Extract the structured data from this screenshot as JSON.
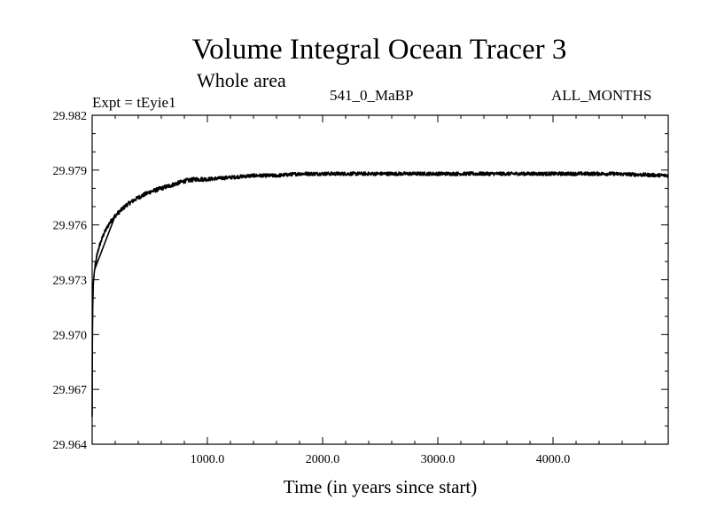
{
  "chart_data": {
    "type": "line",
    "title": "Volume Integral Ocean Tracer 3",
    "subtitle": "Whole area",
    "annotations": {
      "experiment": "Expt = tEyie1",
      "period": "541_0_MaBP",
      "months": "ALL_MONTHS"
    },
    "xlabel": "Time (in years since start)",
    "ylabel": "",
    "xlim": [
      0,
      5000
    ],
    "ylim": [
      29.964,
      29.982
    ],
    "x_ticks": [
      1000,
      2000,
      3000,
      4000
    ],
    "x_tick_labels": [
      "1000.0",
      "2000.0",
      "3000.0",
      "4000.0"
    ],
    "y_ticks": [
      29.964,
      29.967,
      29.97,
      29.973,
      29.976,
      29.979,
      29.982
    ],
    "y_tick_labels": [
      "29.964",
      "29.967",
      "29.970",
      "29.973",
      "29.976",
      "29.979",
      "29.982"
    ],
    "grid": false,
    "legend": "none",
    "line_color": "#000000",
    "series": [
      {
        "x": [
          0,
          2,
          5,
          10,
          20,
          40,
          60,
          100,
          150,
          200,
          250,
          300,
          400,
          500,
          600,
          700,
          800,
          900,
          1000,
          1200,
          1400,
          1600,
          1800,
          2000,
          2500,
          3000,
          3500,
          4000,
          4500,
          5000
        ],
        "y": [
          29.9655,
          29.9695,
          29.9715,
          29.9728,
          29.9735,
          29.9743,
          29.9748,
          29.9755,
          29.9761,
          29.9765,
          29.9768,
          29.9771,
          29.9775,
          29.9778,
          29.978,
          29.9782,
          29.9784,
          29.9785,
          29.9785,
          29.9786,
          29.9787,
          29.9787,
          29.9788,
          29.9788,
          29.9788,
          29.9788,
          29.9788,
          29.9788,
          29.9788,
          29.9787
        ]
      }
    ]
  }
}
